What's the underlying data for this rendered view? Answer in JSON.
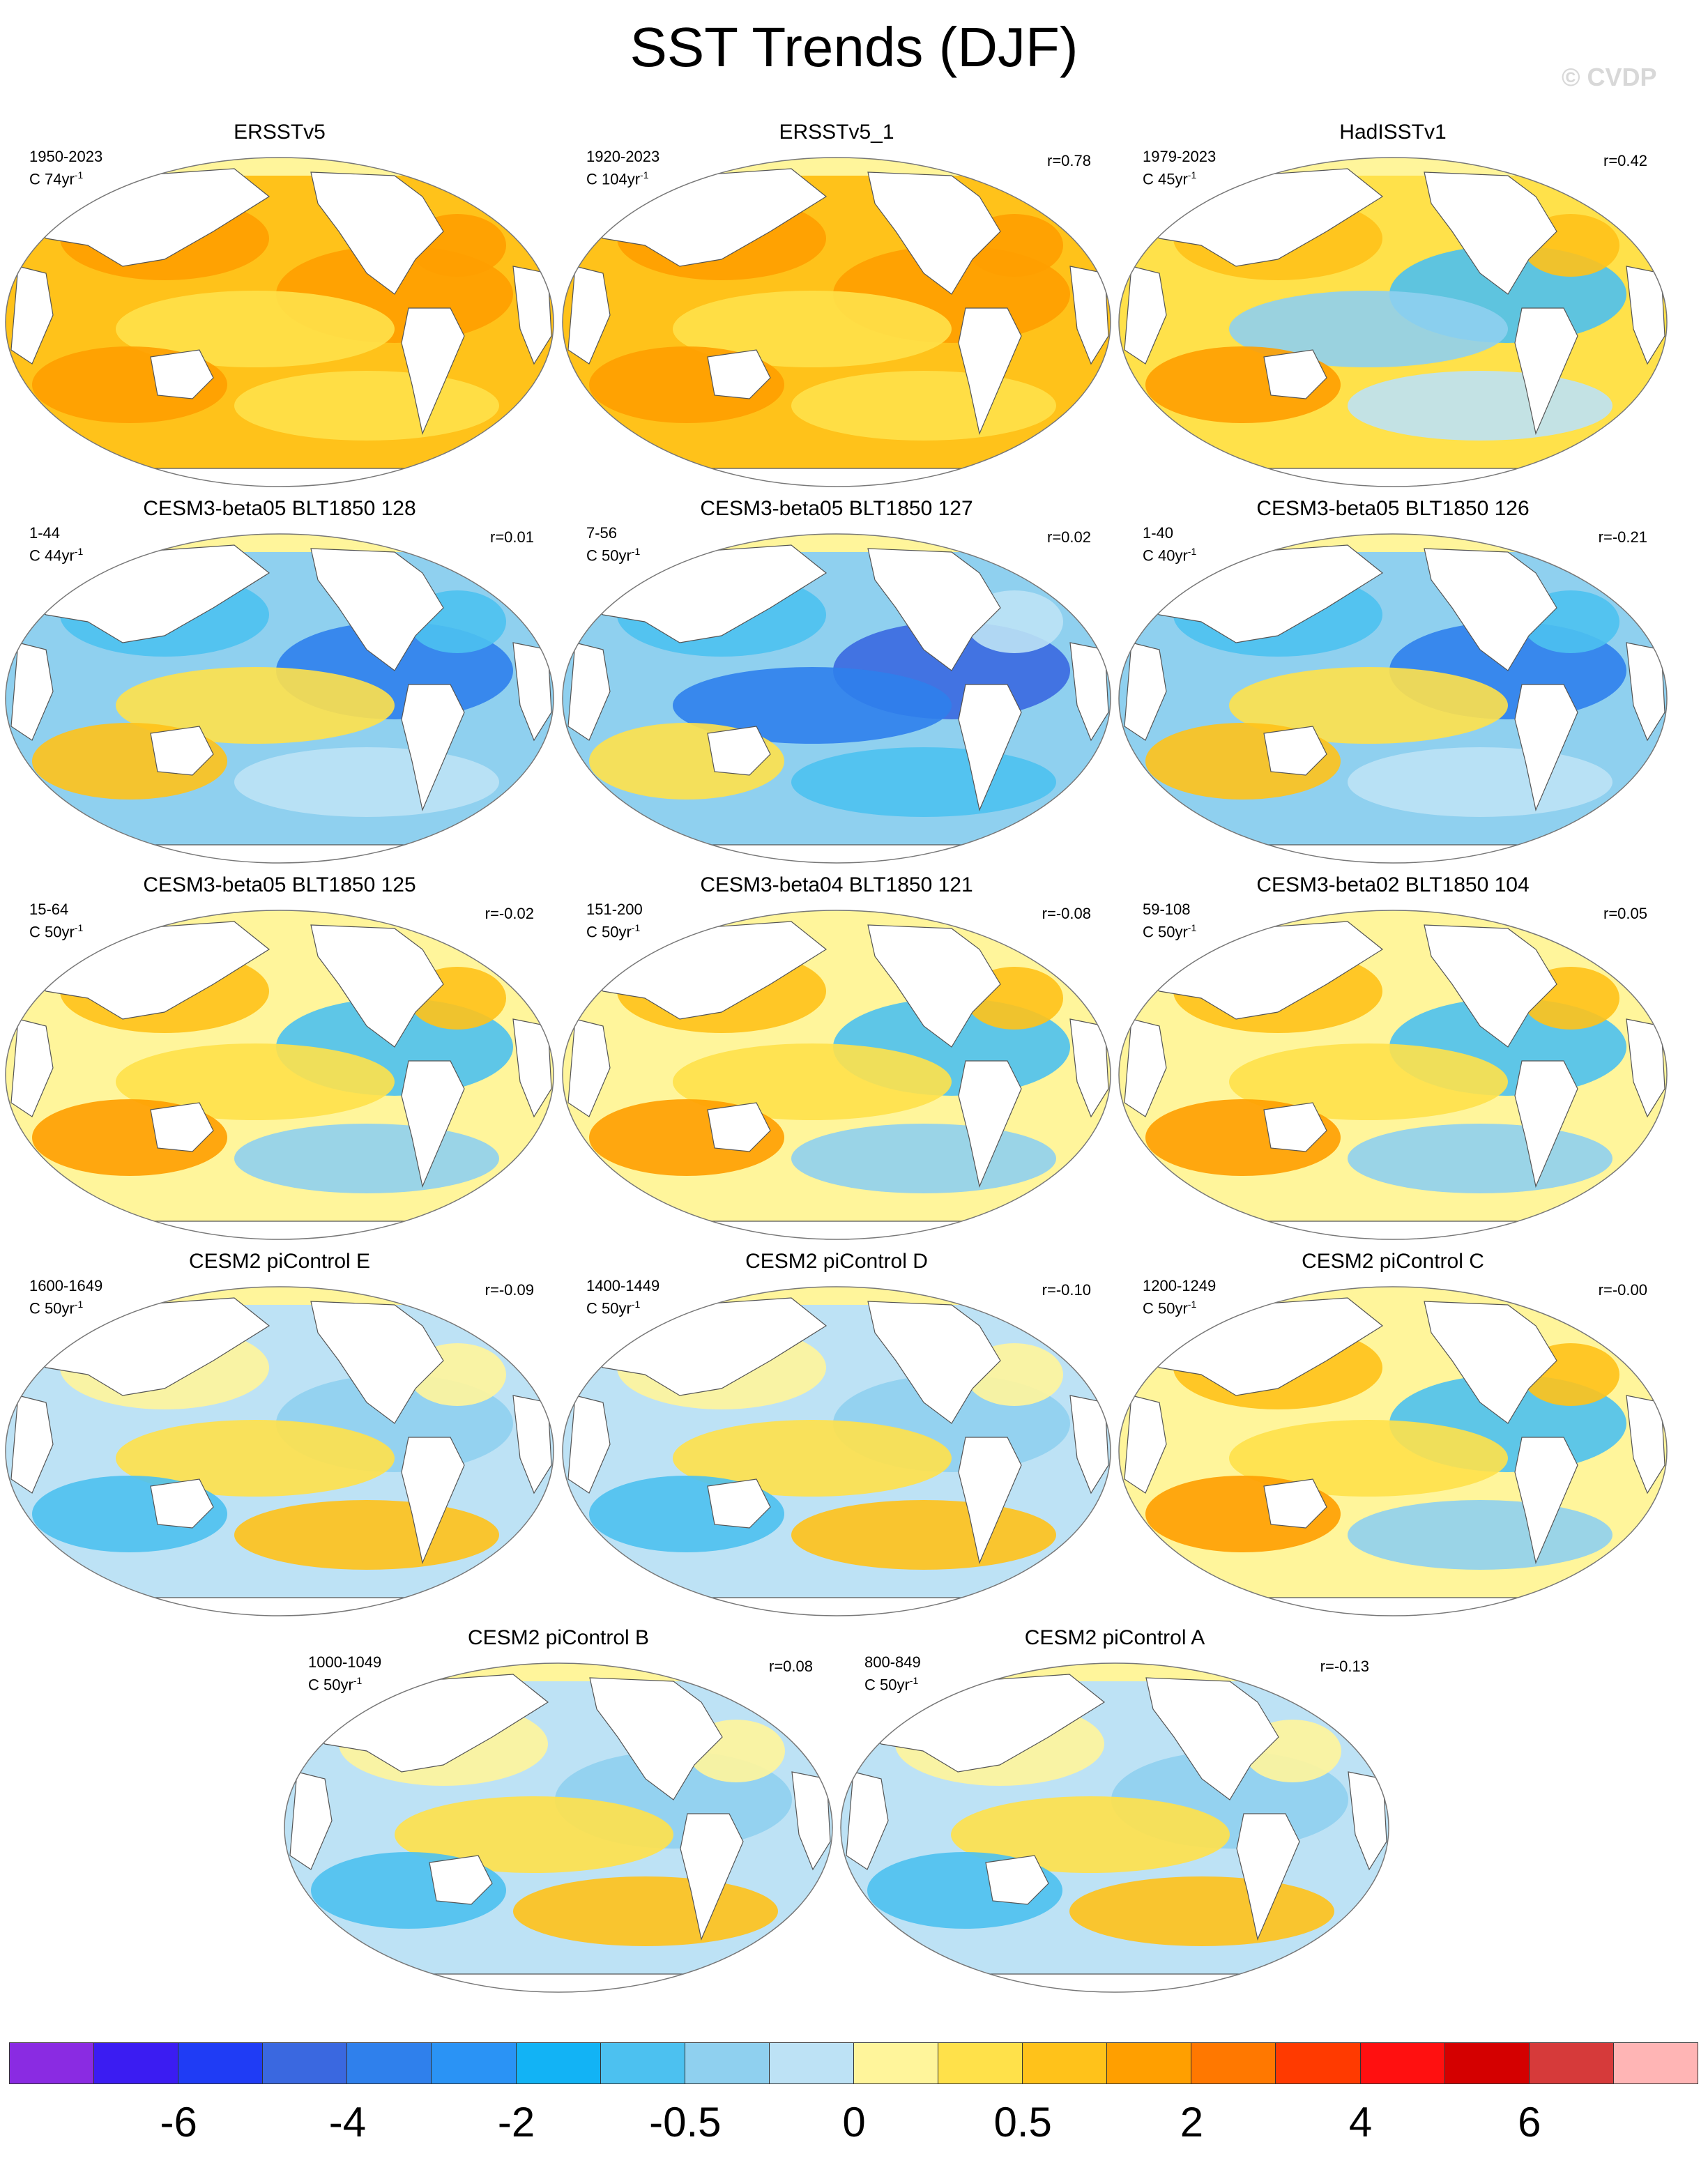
{
  "title": "SST Trends (DJF)",
  "watermark": "© CVDP",
  "panels": [
    {
      "name": "ERSSTv5",
      "years": "1950-2023",
      "units": "C 74yr",
      "corr": "",
      "pattern": "warm"
    },
    {
      "name": "ERSSTv5_1",
      "years": "1920-2023",
      "units": "C 104yr",
      "corr": "r=0.78",
      "pattern": "warm"
    },
    {
      "name": "HadISSTv1",
      "years": "1979-2023",
      "units": "C 45yr",
      "corr": "r=0.42",
      "pattern": "lanina"
    },
    {
      "name": "CESM3-beta05 BLT1850 128",
      "years": "1-44",
      "units": "C 44yr",
      "corr": "r=0.01",
      "pattern": "cool"
    },
    {
      "name": "CESM3-beta05 BLT1850 127",
      "years": "7-56",
      "units": "C 50yr",
      "corr": "r=0.02",
      "pattern": "cold"
    },
    {
      "name": "CESM3-beta05 BLT1850 126",
      "years": "1-40",
      "units": "C 40yr",
      "corr": "r=-0.21",
      "pattern": "cool"
    },
    {
      "name": "CESM3-beta05 BLT1850 125",
      "years": "15-64",
      "units": "C 50yr",
      "corr": "r=-0.02",
      "pattern": "mixwarm"
    },
    {
      "name": "CESM3-beta04 BLT1850 121",
      "years": "151-200",
      "units": "C 50yr",
      "corr": "r=-0.08",
      "pattern": "mixwarm"
    },
    {
      "name": "CESM3-beta02 BLT1850 104",
      "years": "59-108",
      "units": "C 50yr",
      "corr": "r=0.05",
      "pattern": "mixwarm"
    },
    {
      "name": "CESM2 piControl E",
      "years": "1600-1649",
      "units": "C 50yr",
      "corr": "r=-0.09",
      "pattern": "mixcool"
    },
    {
      "name": "CESM2 piControl D",
      "years": "1400-1449",
      "units": "C 50yr",
      "corr": "r=-0.10",
      "pattern": "mixcool"
    },
    {
      "name": "CESM2 piControl C",
      "years": "1200-1249",
      "units": "C 50yr",
      "corr": "r=-0.00",
      "pattern": "mixwarm"
    },
    {
      "name": "CESM2 piControl B",
      "years": "1000-1049",
      "units": "C 50yr",
      "corr": "r=0.08",
      "pattern": "mixcool"
    },
    {
      "name": "CESM2 piControl A",
      "years": "800-849",
      "units": "C 50yr",
      "corr": "r=-0.13",
      "pattern": "mixcool"
    }
  ],
  "units_superscript": "-1",
  "colorbar": {
    "colors": [
      "#8a2be2",
      "#3b1cf2",
      "#1f3cf5",
      "#3a68e0",
      "#2f80ec",
      "#2a93f5",
      "#12b3f5",
      "#4cc1f0",
      "#8fd0ef",
      "#bde2f5",
      "#fff59b",
      "#ffe14a",
      "#ffc21a",
      "#ff9f00",
      "#ff7800",
      "#ff3a00",
      "#ff1010",
      "#d40000",
      "#d63a3a",
      "#ffb5b5"
    ],
    "tick_labels": [
      "-6",
      "-4",
      "-2",
      "-0.5",
      "0",
      "0.5",
      "2",
      "4",
      "6"
    ]
  }
}
